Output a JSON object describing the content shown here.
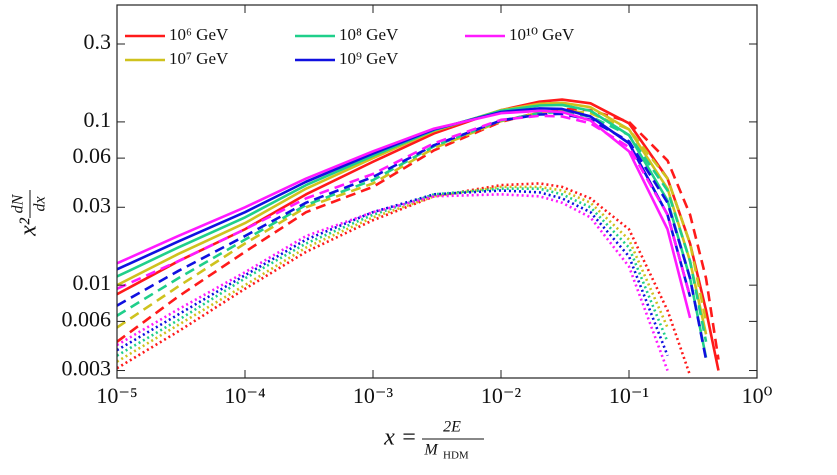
{
  "chart_data": {
    "type": "line",
    "xlabel": {
      "prefix": "x =",
      "num": "2E",
      "den": "M",
      "den_sub": "HDM"
    },
    "ylabel": {
      "prefix": "x²",
      "num": "dN",
      "den": "dx"
    },
    "xscale": "log",
    "yscale": "log",
    "legend": "upper left",
    "xlim": [
      1e-05,
      1
    ],
    "ylim": [
      0.0027,
      0.52
    ],
    "xticks": [
      {
        "value": 1e-05,
        "label": "10⁻⁵"
      },
      {
        "value": 0.0001,
        "label": "10⁻⁴"
      },
      {
        "value": 0.001,
        "label": "10⁻³"
      },
      {
        "value": 0.01,
        "label": "10⁻²"
      },
      {
        "value": 0.1,
        "label": "10⁻¹"
      },
      {
        "value": 1,
        "label": "10⁰"
      }
    ],
    "yticks": [
      0.003,
      0.006,
      0.01,
      0.03,
      0.06,
      0.1,
      0.3
    ],
    "x": [
      1e-05,
      3e-05,
      0.0001,
      0.0003,
      0.001,
      0.003,
      0.01,
      0.02,
      0.03,
      0.05,
      0.1,
      0.2,
      0.3,
      0.4,
      0.5
    ],
    "series": [
      {
        "name": "10⁶ GeV",
        "color": "#ff1a1a",
        "values": [
          0.0088,
          0.014,
          0.022,
          0.036,
          0.057,
          0.085,
          0.118,
          0.133,
          0.137,
          0.13,
          0.098,
          0.045,
          0.018,
          0.007,
          0.003
        ],
        "dashed_values": [
          0.0045,
          0.0085,
          0.016,
          0.028,
          0.04,
          0.067,
          0.1,
          0.115,
          0.12,
          0.118,
          0.1,
          0.058,
          0.027,
          0.011,
          0.0035
        ],
        "dotted_values": [
          0.0031,
          0.0052,
          0.0095,
          0.016,
          0.025,
          0.035,
          0.041,
          0.042,
          0.04,
          0.034,
          0.022,
          0.007,
          0.0028,
          null,
          null
        ]
      },
      {
        "name": "10⁷ GeV",
        "color": "#cfc21e",
        "values": [
          0.01,
          0.0155,
          0.024,
          0.039,
          0.06,
          0.088,
          0.118,
          0.129,
          0.131,
          0.123,
          0.09,
          0.039,
          0.014,
          0.005,
          null
        ],
        "dashed_values": [
          0.0055,
          0.0098,
          0.018,
          0.03,
          0.042,
          0.069,
          0.101,
          0.114,
          0.118,
          0.113,
          0.09,
          0.045,
          0.018,
          0.006,
          null
        ],
        "dotted_values": [
          0.0034,
          0.0057,
          0.01,
          0.017,
          0.026,
          0.035,
          0.04,
          0.04,
          0.038,
          0.032,
          0.019,
          0.0055,
          null,
          null,
          null
        ]
      },
      {
        "name": "10⁸ GeV",
        "color": "#1fcf8a",
        "values": [
          0.0113,
          0.017,
          0.026,
          0.041,
          0.062,
          0.089,
          0.117,
          0.126,
          0.127,
          0.117,
          0.083,
          0.033,
          0.011,
          0.0036,
          null
        ],
        "dashed_values": [
          0.0065,
          0.011,
          0.019,
          0.031,
          0.044,
          0.071,
          0.102,
          0.113,
          0.115,
          0.108,
          0.083,
          0.038,
          0.014,
          0.0045,
          null
        ],
        "dotted_values": [
          0.0037,
          0.0061,
          0.011,
          0.018,
          0.027,
          0.036,
          0.039,
          0.039,
          0.036,
          0.03,
          0.017,
          0.0045,
          null,
          null,
          null
        ]
      },
      {
        "name": "10⁹ GeV",
        "color": "#1010e0",
        "values": [
          0.0125,
          0.0185,
          0.028,
          0.043,
          0.064,
          0.09,
          0.115,
          0.121,
          0.12,
          0.108,
          0.074,
          0.027,
          0.0085,
          null,
          null
        ],
        "dashed_values": [
          0.0075,
          0.0122,
          0.02,
          0.032,
          0.046,
          0.072,
          0.102,
          0.111,
          0.112,
          0.103,
          0.076,
          0.032,
          0.011,
          0.0035,
          null
        ],
        "dotted_values": [
          0.004,
          0.0066,
          0.0115,
          0.019,
          0.028,
          0.036,
          0.038,
          0.037,
          0.034,
          0.028,
          0.015,
          0.0037,
          null,
          null,
          null
        ]
      },
      {
        "name": "10¹⁰ GeV",
        "color": "#ff1aff",
        "values": [
          0.0136,
          0.02,
          0.03,
          0.045,
          0.066,
          0.091,
          0.113,
          0.117,
          0.115,
          0.102,
          0.066,
          0.022,
          0.0063,
          null,
          null
        ],
        "dashed_values": [
          0.0095,
          0.014,
          0.022,
          0.034,
          0.048,
          0.074,
          0.103,
          0.109,
          0.108,
          0.098,
          0.07,
          0.027,
          0.0085,
          null,
          null
        ],
        "dotted_values": [
          0.0043,
          0.0071,
          0.012,
          0.02,
          0.028,
          0.035,
          0.036,
          0.035,
          0.032,
          0.026,
          0.013,
          0.003,
          null,
          null,
          null
        ]
      }
    ]
  }
}
